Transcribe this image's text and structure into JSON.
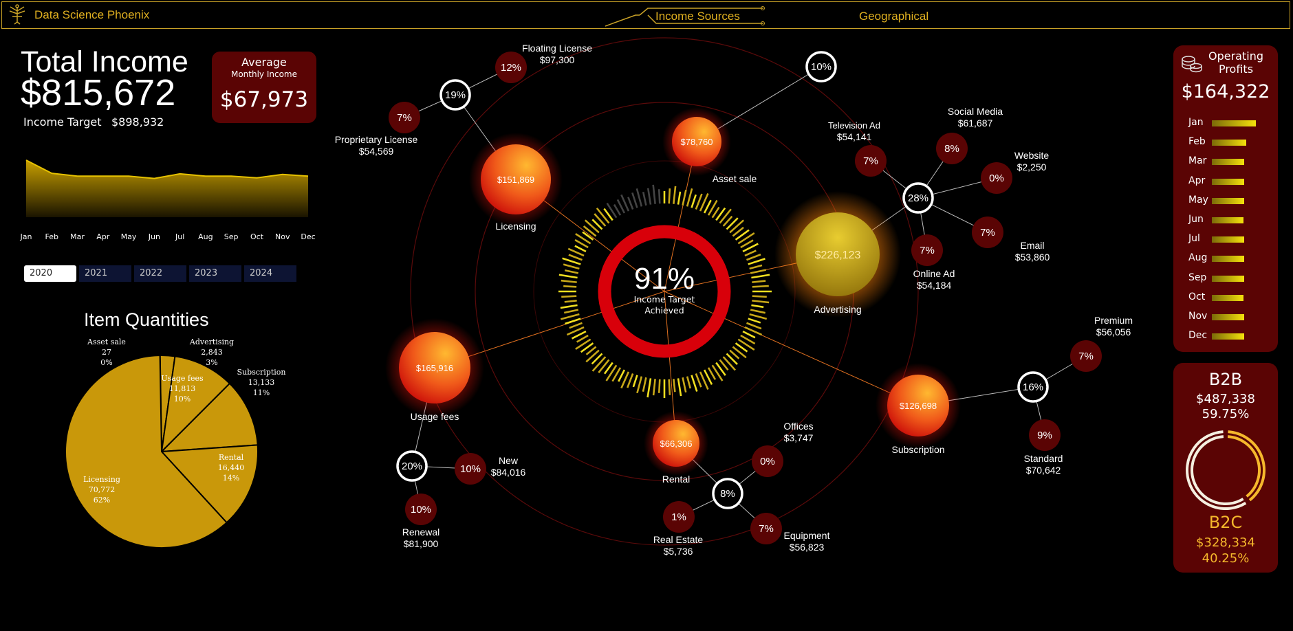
{
  "header": {
    "brand": "Data Science Phoenix",
    "tabs": [
      {
        "label": "Income Sources"
      },
      {
        "label": "Geographical"
      }
    ]
  },
  "left": {
    "total_title": "Total Income",
    "total_value": "$815,672",
    "target_label": "Income Target",
    "target_value": "$898,932",
    "avg_label": "Average",
    "avg_sub": "Monthly Income",
    "avg_value": "$67,973",
    "months": [
      "Jan",
      "Feb",
      "Mar",
      "Apr",
      "May",
      "Jun",
      "Jul",
      "Aug",
      "Sep",
      "Oct",
      "Nov",
      "Dec"
    ],
    "years": [
      "2020",
      "2021",
      "2022",
      "2023",
      "2024"
    ],
    "selected_year": "2020",
    "qty_title": "Item Quantities"
  },
  "chart_data": [
    {
      "type": "area",
      "categories": [
        "Jan",
        "Feb",
        "Mar",
        "Apr",
        "May",
        "Jun",
        "Jul",
        "Aug",
        "Sep",
        "Oct",
        "Nov",
        "Dec"
      ],
      "values": [
        1.0,
        0.77,
        0.72,
        0.72,
        0.72,
        0.68,
        0.76,
        0.72,
        0.72,
        0.69,
        0.75,
        0.72
      ],
      "colors": {
        "fill": "#c9a000",
        "line": "#e6c200"
      }
    },
    {
      "type": "pie",
      "slices": [
        {
          "label": "Asset sale",
          "value": 27,
          "qty": "27",
          "pct": "0%"
        },
        {
          "label": "Advertising",
          "value": 2843,
          "qty": "2,843",
          "pct": "3%"
        },
        {
          "label": "Usage fees",
          "value": 11813,
          "qty": "11,813",
          "pct": "10%"
        },
        {
          "label": "Subscription",
          "value": 13133,
          "qty": "13,133",
          "pct": "11%"
        },
        {
          "label": "Rental",
          "value": 16440,
          "qty": "16,440",
          "pct": "14%"
        },
        {
          "label": "Licensing",
          "value": 70772,
          "qty": "70,772",
          "pct": "62%"
        }
      ],
      "colors": {
        "fill": "#c9980a",
        "border": "#000"
      }
    },
    {
      "type": "bar",
      "title": "Operating Profits",
      "categories": [
        "Jan",
        "Feb",
        "Mar",
        "Apr",
        "May",
        "Jun",
        "Jul",
        "Aug",
        "Sep",
        "Oct",
        "Nov",
        "Dec"
      ],
      "values": [
        1.0,
        0.78,
        0.74,
        0.74,
        0.74,
        0.72,
        0.74,
        0.74,
        0.74,
        0.72,
        0.74,
        0.74
      ]
    }
  ],
  "center": {
    "pct": "91%",
    "line1": "Income Target",
    "line2": "Achieved",
    "target_fraction": 0.91
  },
  "nodes": {
    "licensing": {
      "value": "$151,869",
      "label": "Licensing"
    },
    "asset": {
      "value": "$78,760",
      "label": "Asset sale"
    },
    "advertising": {
      "value": "$226,123",
      "label": "Advertising"
    },
    "usage": {
      "value": "$165,916",
      "label": "Usage fees"
    },
    "rental": {
      "value": "$66,306",
      "label": "Rental"
    },
    "subscription": {
      "value": "$126,698",
      "label": "Subscription"
    }
  },
  "hubs": {
    "licensing": "19%",
    "asset": "10%",
    "advertising": "28%",
    "usage": "20%",
    "rental": "8%",
    "subscription": "16%"
  },
  "subs": {
    "floating": {
      "pct": "12%",
      "name": "Floating License",
      "value": "$97,300"
    },
    "proprietary": {
      "pct": "7%",
      "name": "Proprietary License",
      "value": "$54,569"
    },
    "tv": {
      "pct": "7%",
      "name": "Television Ad",
      "value": "$54,141"
    },
    "social": {
      "pct": "8%",
      "name": "Social Media",
      "value": "$61,687"
    },
    "website": {
      "pct": "0%",
      "name": "Website",
      "value": "$2,250"
    },
    "email": {
      "pct": "7%",
      "name": "Email",
      "value": "$53,860"
    },
    "online": {
      "pct": "7%",
      "name": "Online Ad",
      "value": "$54,184"
    },
    "new": {
      "pct": "10%",
      "name": "New",
      "value": "$84,016"
    },
    "renewal": {
      "pct": "10%",
      "name": "Renewal",
      "value": "$81,900"
    },
    "offices": {
      "pct": "0%",
      "name": "Offices",
      "value": "$3,747"
    },
    "realestate": {
      "pct": "1%",
      "name": "Real Estate",
      "value": "$5,736"
    },
    "equipment": {
      "pct": "7%",
      "name": "Equipment",
      "value": "$56,823"
    },
    "premium": {
      "pct": "7%",
      "name": "Premium",
      "value": "$56,056"
    },
    "standard": {
      "pct": "9%",
      "name": "Standard",
      "value": "$70,642"
    }
  },
  "right": {
    "op_title": "Operating Profits",
    "op_value": "$164,322",
    "b2b": {
      "title": "B2B",
      "value": "$487,338",
      "pct": "59.75%",
      "fraction": 0.5975
    },
    "b2c": {
      "title": "B2C",
      "value": "$328,334",
      "pct": "40.25%",
      "fraction": 0.4025
    }
  }
}
